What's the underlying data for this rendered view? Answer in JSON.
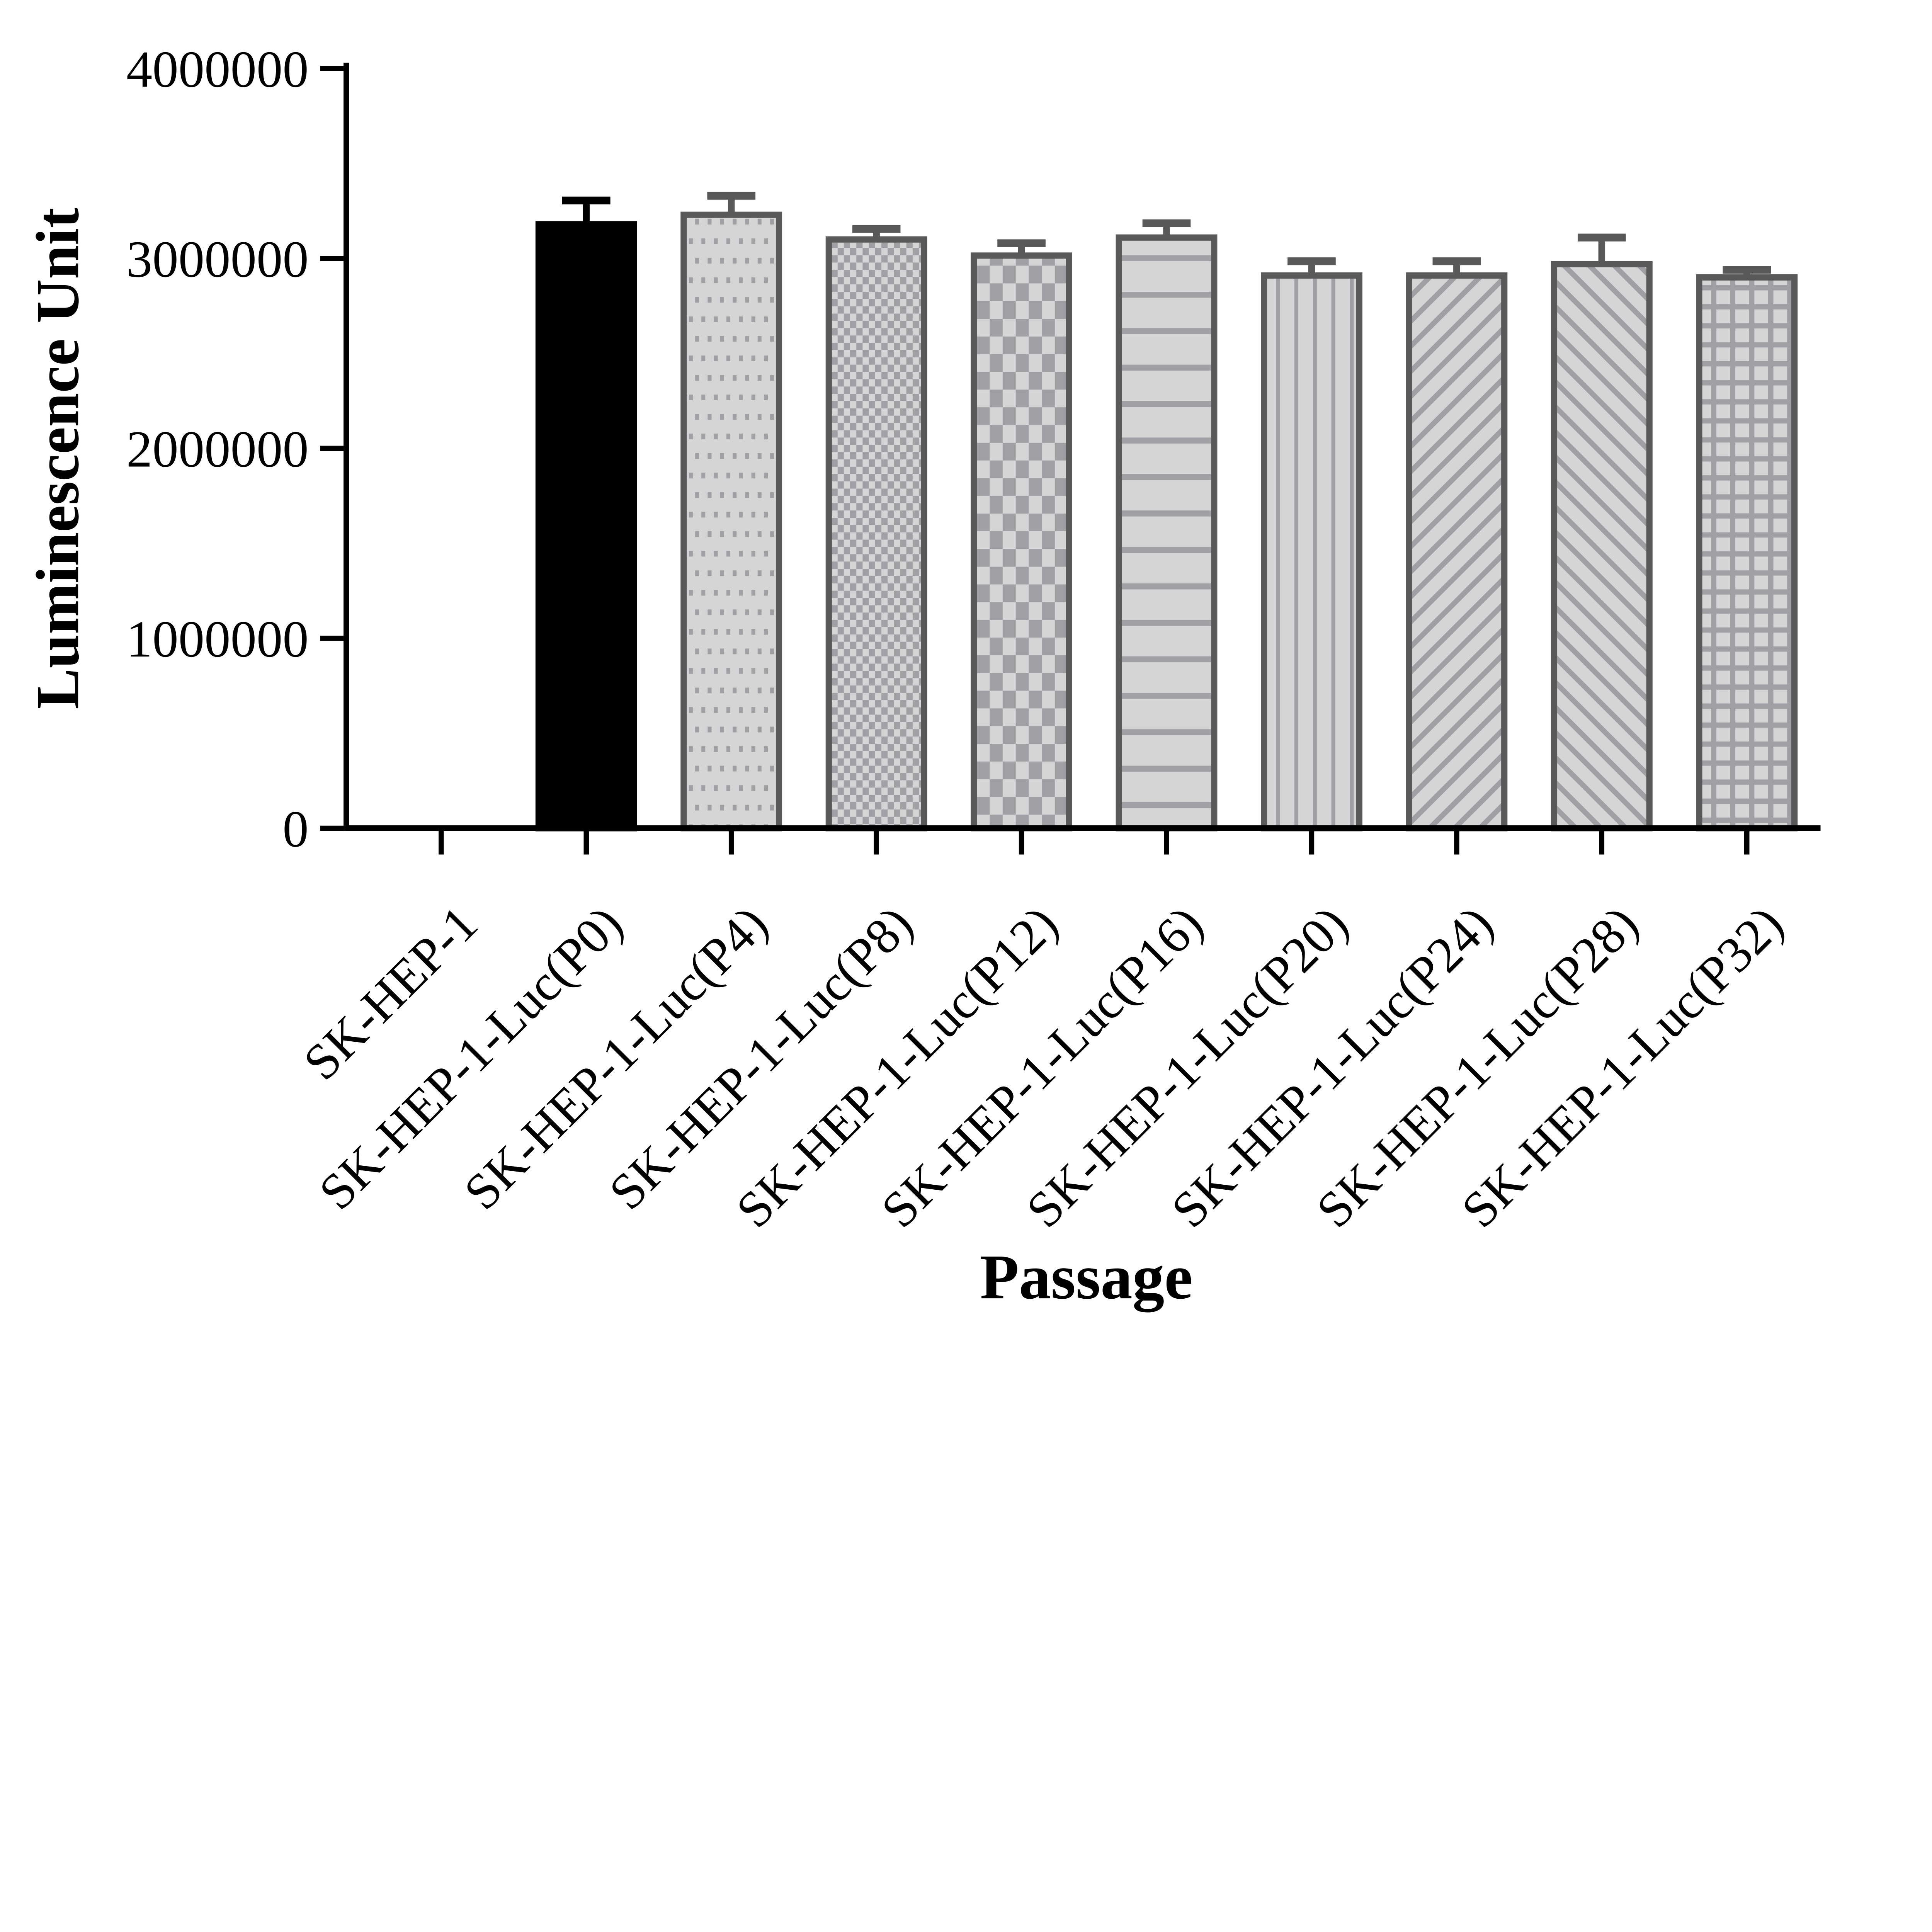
{
  "chart_data": {
    "type": "bar",
    "title": "",
    "xlabel": "Passage",
    "ylabel": "Luminescence Unit",
    "ylim": [
      0,
      4000000
    ],
    "yticks": [
      0,
      1000000,
      2000000,
      3000000,
      4000000
    ],
    "ytick_labels": [
      "0",
      "1000000",
      "2000000",
      "3000000",
      "4000000"
    ],
    "grid": false,
    "legend": "none",
    "error_bars": "upper SD whisker with cap",
    "categories": [
      "SK-HEP-1",
      "SK-HEP-1-Luc(P0)",
      "SK-HEP-1-Luc(P4)",
      "SK-HEP-1-Luc(P8)",
      "SK-HEP-1-Luc(P12)",
      "SK-HEP-1-Luc(P16)",
      "SK-HEP-1-Luc(P20)",
      "SK-HEP-1-Luc(P24)",
      "SK-HEP-1-Luc(P28)",
      "SK-HEP-1-Luc(P32)"
    ],
    "values": [
      0,
      3180000,
      3230000,
      3100000,
      3015000,
      3110000,
      2910000,
      2910000,
      2970000,
      2900000
    ],
    "errors": [
      0,
      125000,
      100000,
      55000,
      65000,
      75000,
      75000,
      75000,
      140000,
      40000
    ],
    "bar_patterns": [
      "none",
      "solid",
      "dots",
      "checker-fine",
      "checker",
      "hlines",
      "vlines",
      "diag-up",
      "diag-down",
      "grid"
    ],
    "colors": {
      "axis": "#000000",
      "black_bar": "#000000",
      "bar_border": "#595959",
      "bar_fill": "#d5d5d6",
      "pattern_mark": "#a0a0a4",
      "background": "#ffffff"
    }
  }
}
